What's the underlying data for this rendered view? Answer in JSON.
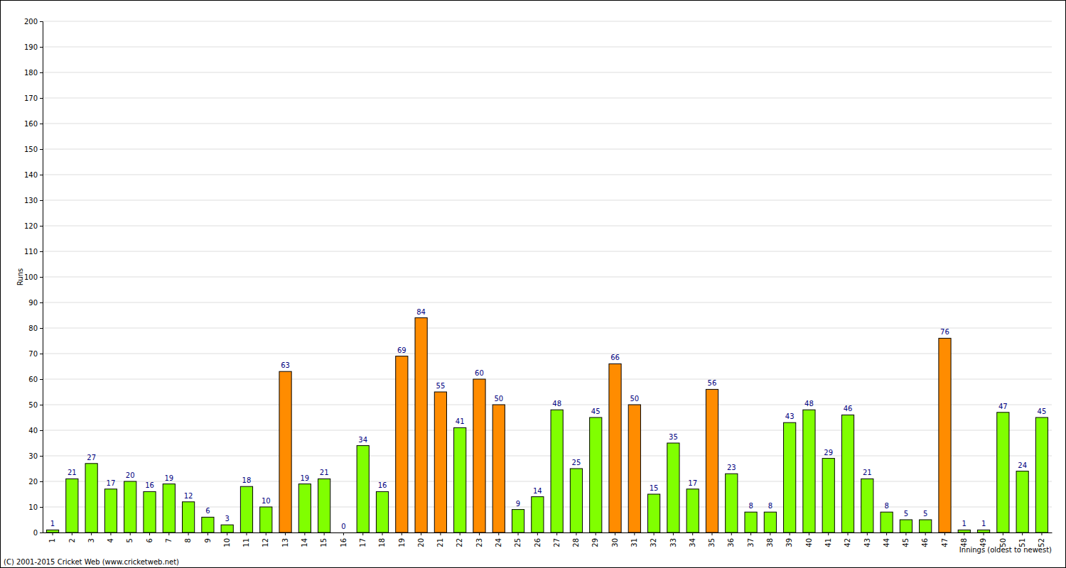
{
  "chart_data": {
    "type": "bar",
    "x_label": "Innings (oldest to newest)",
    "y_label": "Runs",
    "annotations": [
      "(C) 2001-2015 Cricket Web (www.cricketweb.net)"
    ],
    "categories": [
      "1",
      "2",
      "3",
      "4",
      "5",
      "6",
      "7",
      "8",
      "9",
      "10",
      "11",
      "12",
      "13",
      "14",
      "15",
      "16",
      "17",
      "18",
      "19",
      "20",
      "21",
      "22",
      "23",
      "24",
      "25",
      "26",
      "27",
      "28",
      "29",
      "30",
      "31",
      "32",
      "33",
      "34",
      "35",
      "36",
      "37",
      "38",
      "39",
      "40",
      "41",
      "42",
      "43",
      "44",
      "45",
      "46",
      "47",
      "48",
      "49",
      "50",
      "51",
      "52"
    ],
    "values": [
      1,
      21,
      27,
      17,
      20,
      16,
      19,
      12,
      6,
      3,
      18,
      10,
      63,
      19,
      21,
      0,
      34,
      16,
      69,
      84,
      55,
      41,
      60,
      50,
      9,
      14,
      48,
      25,
      45,
      66,
      50,
      15,
      35,
      17,
      56,
      23,
      8,
      8,
      43,
      48,
      29,
      46,
      21,
      8,
      5,
      5,
      76,
      1,
      1,
      47,
      24,
      45
    ],
    "colors": [
      "#80ff00",
      "#80ff00",
      "#80ff00",
      "#80ff00",
      "#80ff00",
      "#80ff00",
      "#80ff00",
      "#80ff00",
      "#80ff00",
      "#80ff00",
      "#80ff00",
      "#80ff00",
      "#ff8c00",
      "#80ff00",
      "#80ff00",
      "#80ff00",
      "#80ff00",
      "#80ff00",
      "#ff8c00",
      "#ff8c00",
      "#ff8c00",
      "#80ff00",
      "#ff8c00",
      "#ff8c00",
      "#80ff00",
      "#80ff00",
      "#80ff00",
      "#80ff00",
      "#80ff00",
      "#ff8c00",
      "#ff8c00",
      "#80ff00",
      "#80ff00",
      "#80ff00",
      "#ff8c00",
      "#80ff00",
      "#80ff00",
      "#80ff00",
      "#80ff00",
      "#80ff00",
      "#80ff00",
      "#80ff00",
      "#80ff00",
      "#80ff00",
      "#80ff00",
      "#80ff00",
      "#ff8c00",
      "#80ff00",
      "#80ff00",
      "#80ff00",
      "#80ff00",
      "#80ff00"
    ],
    "ylim": [
      0,
      200
    ],
    "yticks": [
      0,
      10,
      20,
      30,
      40,
      50,
      60,
      70,
      80,
      90,
      100,
      110,
      120,
      130,
      140,
      150,
      160,
      170,
      180,
      190,
      200
    ],
    "grid": true,
    "data_labels": true
  }
}
